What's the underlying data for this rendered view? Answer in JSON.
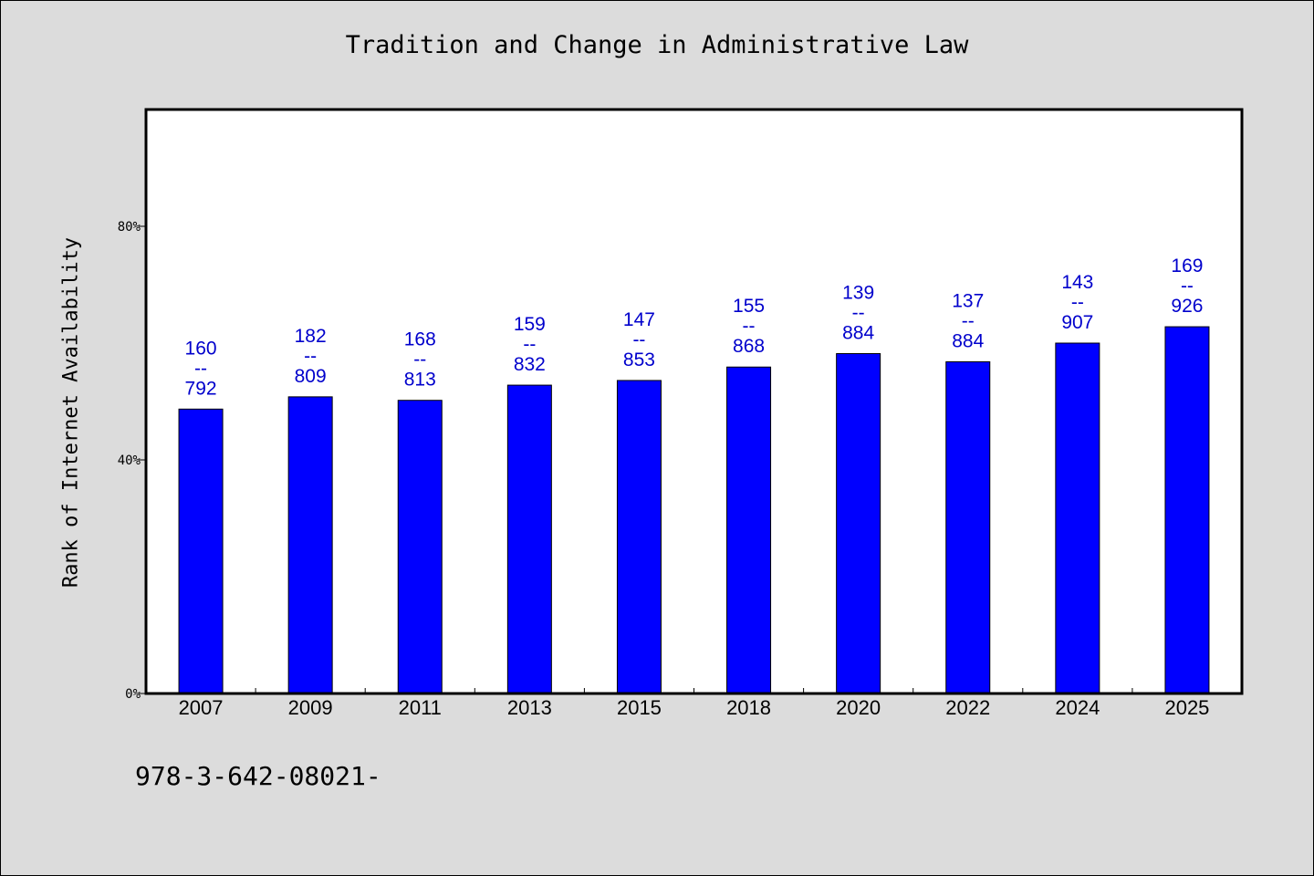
{
  "title": "Tradition and Change in Administrative Law",
  "footnote": "978-3-642-08021-",
  "chart_data": {
    "type": "bar",
    "title": "Tradition and Change in Administrative Law",
    "xlabel": "",
    "ylabel": "Rank of Internet Availability",
    "ylim": [
      0,
      100
    ],
    "yticks": [
      0,
      40,
      80
    ],
    "ytick_labels": [
      "0%",
      "40%",
      "80%"
    ],
    "grid": false,
    "bar_color": "#0000ff",
    "label_color": "#0000cc",
    "categories": [
      "2007",
      "2009",
      "2011",
      "2013",
      "2015",
      "2018",
      "2020",
      "2022",
      "2024",
      "2025"
    ],
    "values": [
      48.7,
      50.8,
      50.2,
      52.8,
      53.6,
      55.9,
      58.2,
      56.8,
      60.0,
      62.8
    ],
    "data_labels": [
      [
        "160",
        "--",
        "792"
      ],
      [
        "182",
        "--",
        "809"
      ],
      [
        "168",
        "--",
        "813"
      ],
      [
        "159",
        "--",
        "832"
      ],
      [
        "147",
        "--",
        "853"
      ],
      [
        "155",
        "--",
        "868"
      ],
      [
        "139",
        "--",
        "884"
      ],
      [
        "137",
        "--",
        "884"
      ],
      [
        "143",
        "--",
        "907"
      ],
      [
        "169",
        "--",
        "926"
      ]
    ]
  }
}
